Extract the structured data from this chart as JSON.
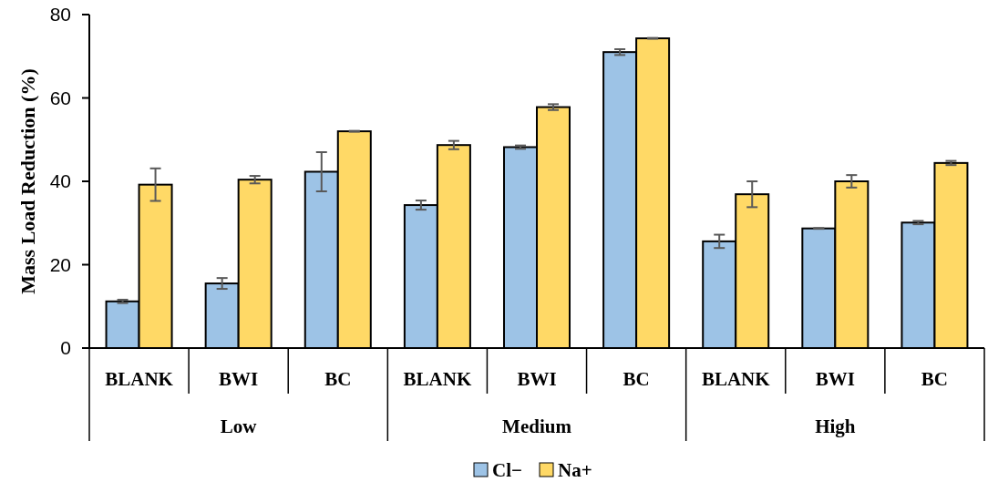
{
  "chart_data": {
    "type": "bar",
    "ylabel": "Mass Load Reduction (%)",
    "categories": [
      "BLANK",
      "BWI",
      "BC",
      "BLANK",
      "BWI",
      "BC",
      "BLANK",
      "BWI",
      "BC"
    ],
    "annotations": [
      "Low",
      "Medium",
      "High"
    ],
    "series": [
      {
        "name": "Cl−",
        "color": "#9dc3e6",
        "values": [
          11.2,
          15.5,
          42.3,
          34.3,
          48.2,
          71.0,
          25.6,
          28.7,
          30.1
        ],
        "errors": [
          0.4,
          1.3,
          4.7,
          1.1,
          0.4,
          0.7,
          1.6,
          0.1,
          0.4
        ]
      },
      {
        "name": "Na+",
        "color": "#ffd966",
        "values": [
          39.2,
          40.4,
          52.0,
          48.7,
          57.8,
          74.3,
          36.9,
          40.0,
          44.4
        ],
        "errors": [
          3.9,
          0.9,
          0.1,
          1.0,
          0.7,
          0.1,
          3.1,
          1.5,
          0.5
        ]
      }
    ],
    "ylim": [
      0,
      80
    ],
    "yticks": [
      0,
      20,
      40,
      60,
      80
    ],
    "legend": "bottom"
  }
}
